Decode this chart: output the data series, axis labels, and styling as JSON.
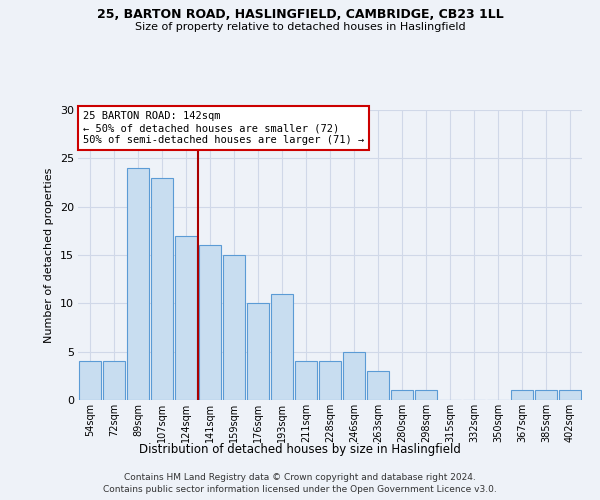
{
  "title1": "25, BARTON ROAD, HASLINGFIELD, CAMBRIDGE, CB23 1LL",
  "title2": "Size of property relative to detached houses in Haslingfield",
  "xlabel": "Distribution of detached houses by size in Haslingfield",
  "ylabel": "Number of detached properties",
  "categories": [
    "54sqm",
    "72sqm",
    "89sqm",
    "107sqm",
    "124sqm",
    "141sqm",
    "159sqm",
    "176sqm",
    "193sqm",
    "211sqm",
    "228sqm",
    "246sqm",
    "263sqm",
    "280sqm",
    "298sqm",
    "315sqm",
    "332sqm",
    "350sqm",
    "367sqm",
    "385sqm",
    "402sqm"
  ],
  "values": [
    4,
    4,
    24,
    23,
    17,
    16,
    15,
    10,
    11,
    4,
    4,
    5,
    3,
    1,
    1,
    0,
    0,
    0,
    1,
    1,
    1
  ],
  "bar_color": "#c8ddf0",
  "bar_edge_color": "#5b9bd5",
  "vline_index": 5,
  "annotation_text": "25 BARTON ROAD: 142sqm\n← 50% of detached houses are smaller (72)\n50% of semi-detached houses are larger (71) →",
  "annotation_box_color": "white",
  "annotation_box_edge_color": "#cc0000",
  "vline_color": "#aa0000",
  "footer1": "Contains HM Land Registry data © Crown copyright and database right 2024.",
  "footer2": "Contains public sector information licensed under the Open Government Licence v3.0.",
  "bg_color": "#eef2f8",
  "grid_color": "#d0d8e8",
  "ylim": [
    0,
    30
  ],
  "yticks": [
    0,
    5,
    10,
    15,
    20,
    25,
    30
  ]
}
